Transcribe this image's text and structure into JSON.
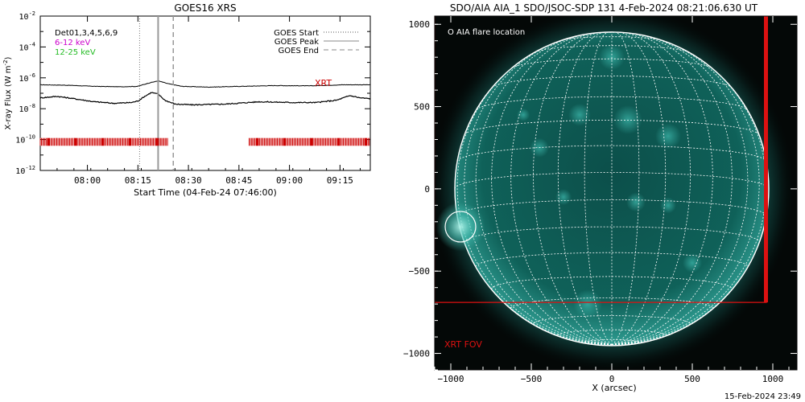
{
  "footer_timestamp": "15-Feb-2024 23:49",
  "chart_data": [
    {
      "type": "line",
      "title": "GOES16 XRS",
      "xlabel": "Start Time (04-Feb-24 07:46:00)",
      "ylabel": "X-ray Flux (W m",
      "ylabel_exp": "-2",
      "ylabel_close": ")",
      "x_unit": "minutes from 07:46:00",
      "xlim": [
        0,
        98
      ],
      "ylim_log10": [
        -12,
        -2
      ],
      "x_ticks": [
        {
          "v": 14,
          "label": "08:00"
        },
        {
          "v": 29,
          "label": "08:15"
        },
        {
          "v": 44,
          "label": "08:30"
        },
        {
          "v": 59,
          "label": "08:45"
        },
        {
          "v": 74,
          "label": "09:00"
        },
        {
          "v": 89,
          "label": "09:15"
        }
      ],
      "y_ticks": [
        {
          "exp": -12,
          "label": "10",
          "sup": "-12"
        },
        {
          "exp": -10,
          "label": "10",
          "sup": "-10"
        },
        {
          "exp": -8,
          "label": "10",
          "sup": "-8"
        },
        {
          "exp": -6,
          "label": "10",
          "sup": "-6"
        },
        {
          "exp": -4,
          "label": "10",
          "sup": "-4"
        },
        {
          "exp": -2,
          "label": "10",
          "sup": "-2"
        }
      ],
      "channel_legend": [
        {
          "label": "Det01,3,4,5,6,9",
          "color": "#000000"
        },
        {
          "label": "6-12 keV",
          "color": "#cc00cc"
        },
        {
          "label": "12-25 keV",
          "color": "#22bb22"
        }
      ],
      "event_legend": [
        {
          "label": "GOES Start",
          "style": "dotted"
        },
        {
          "label": "GOES Peak",
          "style": "solid"
        },
        {
          "label": "GOES End",
          "style": "dashed"
        }
      ],
      "events": {
        "start": 29.5,
        "peak": 35.0,
        "end": 39.5
      },
      "xrt_label": "XRT",
      "xrt_color": "#cc0000",
      "xrt_coverage": [
        [
          0,
          38
        ],
        [
          62,
          98
        ]
      ],
      "series": [
        {
          "name": "GOES long",
          "x": [
            0,
            8,
            16,
            24,
            29,
            32,
            35,
            38,
            42,
            50,
            60,
            70,
            80,
            90,
            98
          ],
          "log10_flux": [
            -6.45,
            -6.48,
            -6.55,
            -6.58,
            -6.55,
            -6.35,
            -6.2,
            -6.38,
            -6.55,
            -6.6,
            -6.55,
            -6.5,
            -6.52,
            -6.45,
            -6.45
          ]
        },
        {
          "name": "GOES short",
          "x": [
            0,
            5,
            10,
            16,
            22,
            27,
            29,
            31,
            33,
            35,
            37,
            40,
            45,
            55,
            65,
            75,
            82,
            88,
            92,
            95,
            98
          ],
          "log10_flux": [
            -7.3,
            -7.2,
            -7.35,
            -7.55,
            -7.65,
            -7.6,
            -7.5,
            -7.2,
            -6.95,
            -7.05,
            -7.45,
            -7.7,
            -7.75,
            -7.7,
            -7.55,
            -7.6,
            -7.6,
            -7.45,
            -7.15,
            -7.3,
            -7.35
          ]
        }
      ]
    },
    {
      "type": "image",
      "title": "SDO/AIA AIA_1 SDO/JSOC-SDP 131  4-Feb-2024 08:21:06.630 UT",
      "xlabel": "X (arcsec)",
      "xlim": [
        -1100,
        1150
      ],
      "ylim": [
        -1100,
        1050
      ],
      "x_ticks": [
        -1000,
        -500,
        0,
        500,
        1000
      ],
      "y_ticks": [
        -1000,
        -500,
        0,
        500,
        1000
      ],
      "solar_radius_arcsec": 975,
      "grid_spacing_deg": 10,
      "flare_legend": "O AIA flare location",
      "flare_location": {
        "x": -940,
        "y": -230,
        "r": 95
      },
      "xrt_fov_label": "XRT FOV",
      "xrt_fov": {
        "x0": -1100,
        "x1": 960,
        "y0": -690,
        "y1": 1100
      },
      "disk_color": "#0d5f58",
      "corona_color": "#3fbcb0",
      "fov_color": "#dd1111"
    }
  ]
}
